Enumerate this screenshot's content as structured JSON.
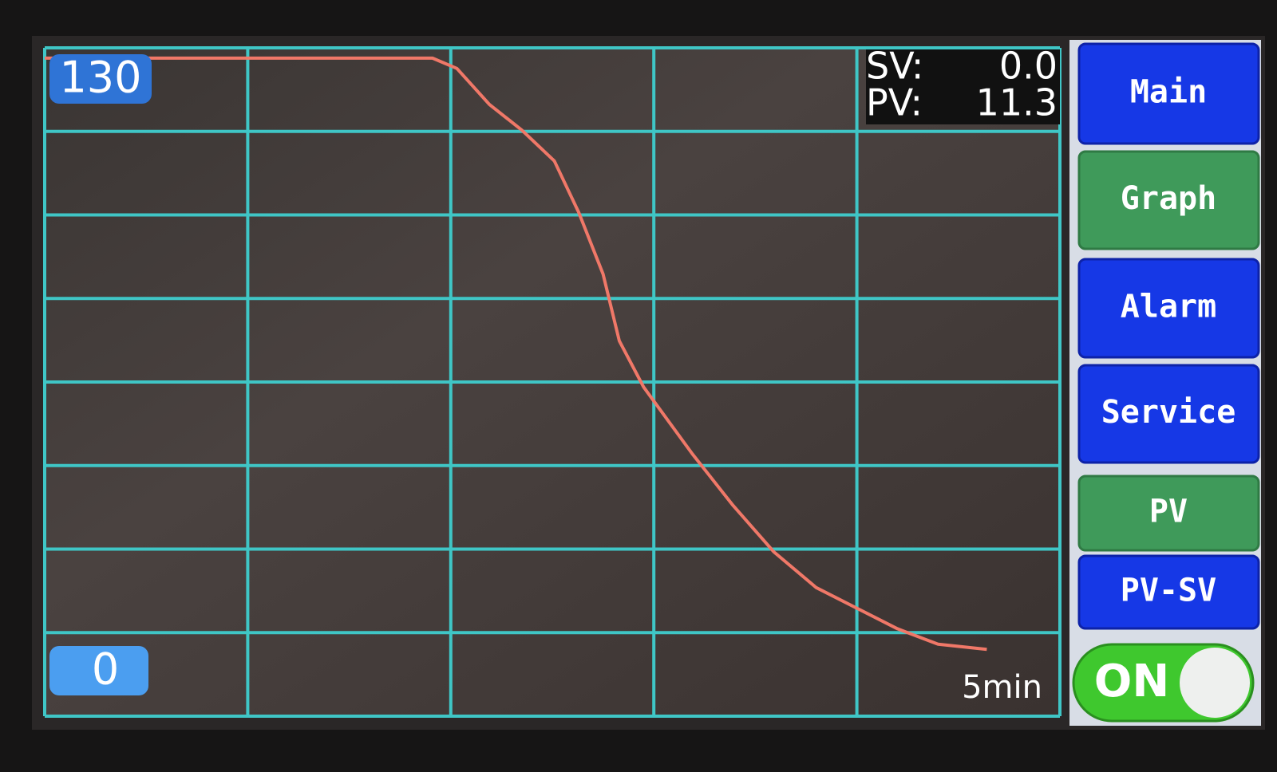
{
  "chart_data": {
    "type": "line",
    "x": [
      0,
      1.91,
      2.03,
      2.19,
      2.35,
      2.51,
      2.63,
      2.75,
      2.83,
      2.95,
      3.19,
      3.39,
      3.59,
      3.8,
      4.0,
      4.2,
      4.4,
      4.64
    ],
    "series": [
      {
        "name": "PV",
        "color": "#f07868",
        "values": [
          128,
          128,
          126,
          119,
          114,
          108,
          98,
          86,
          73,
          64,
          51,
          41,
          32,
          25,
          21,
          17,
          14,
          13
        ]
      }
    ],
    "xlim": [
      0,
      5
    ],
    "xticks": [
      {
        "value": 5,
        "label": "5min"
      }
    ],
    "ylim": [
      0,
      130
    ],
    "yticks": [
      0,
      130
    ],
    "grid": true
  },
  "readout": {
    "sv_label": "SV:",
    "sv": "0.0",
    "pv_label": "PV:",
    "pv": "11.3"
  },
  "menu": {
    "buttons": [
      "Main",
      "Graph",
      "Alarm",
      "Service",
      "PV",
      "PV-SV"
    ],
    "toggle": "ON"
  }
}
